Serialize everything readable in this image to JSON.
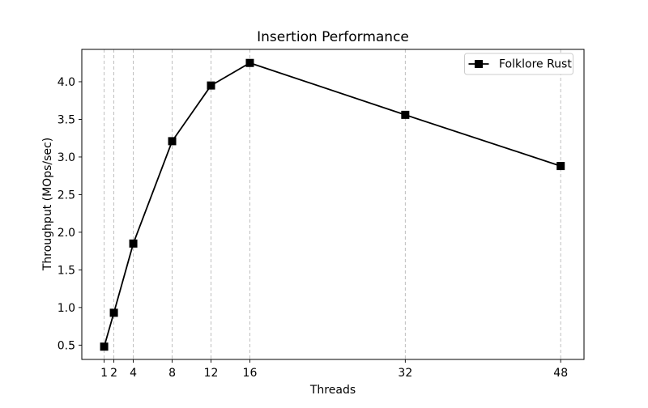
{
  "chart_data": {
    "type": "line",
    "title": "Insertion Performance",
    "xlabel": "Threads",
    "ylabel": "Throughput (MOps/sec)",
    "series": [
      {
        "name": "Folklore Rust",
        "marker": "square",
        "color": "#000000",
        "x": [
          1,
          2,
          4,
          8,
          12,
          16,
          32,
          48
        ],
        "y": [
          0.48,
          0.93,
          1.85,
          3.21,
          3.95,
          4.25,
          3.56,
          2.88
        ]
      }
    ],
    "xticks": [
      1,
      2,
      4,
      8,
      12,
      16,
      32,
      48
    ],
    "yticks": [
      0.5,
      1.0,
      1.5,
      2.0,
      2.5,
      3.0,
      3.5,
      4.0
    ],
    "xlim": [
      -1.3,
      50.4
    ],
    "ylim": [
      0.31,
      4.43
    ],
    "grid": {
      "axis": "x",
      "style": "dashed",
      "on": true
    },
    "legend": {
      "position": "upper right",
      "entries": [
        "Folklore Rust"
      ]
    },
    "colors": {
      "line": "#000000",
      "marker": "#000000",
      "grid": "#b8b8b8",
      "spine": "#000000",
      "text": "#000000",
      "legend_border": "#cccccc",
      "background": "#ffffff"
    }
  }
}
